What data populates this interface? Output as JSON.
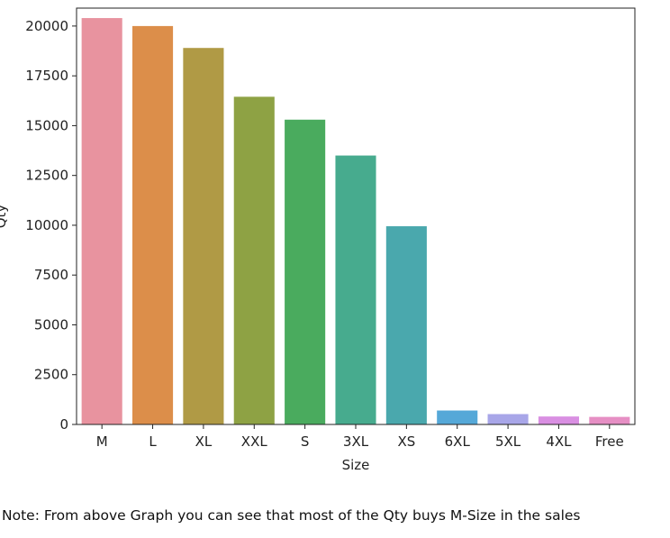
{
  "chart_data": {
    "type": "bar",
    "xlabel": "Size",
    "ylabel": "Qty",
    "categories": [
      "M",
      "L",
      "XL",
      "XXL",
      "S",
      "3XL",
      "XS",
      "6XL",
      "5XL",
      "4XL",
      "Free"
    ],
    "values": [
      20400,
      20000,
      18900,
      16450,
      15300,
      13500,
      9950,
      700,
      520,
      400,
      380
    ],
    "colors": [
      "#e8939f",
      "#dc8e4a",
      "#b09a45",
      "#8ea244",
      "#4aab5e",
      "#47ab8e",
      "#4aa8ad",
      "#55a8d8",
      "#a8a6e8",
      "#d98fe2",
      "#e68fc4"
    ],
    "ylim": [
      0,
      20900
    ],
    "yticks": [
      0,
      2500,
      5000,
      7500,
      10000,
      12500,
      15000,
      17500,
      20000
    ],
    "grid": false
  },
  "note": "Note: From above Graph you can see that most of the Qty buys M-Size in the sales"
}
